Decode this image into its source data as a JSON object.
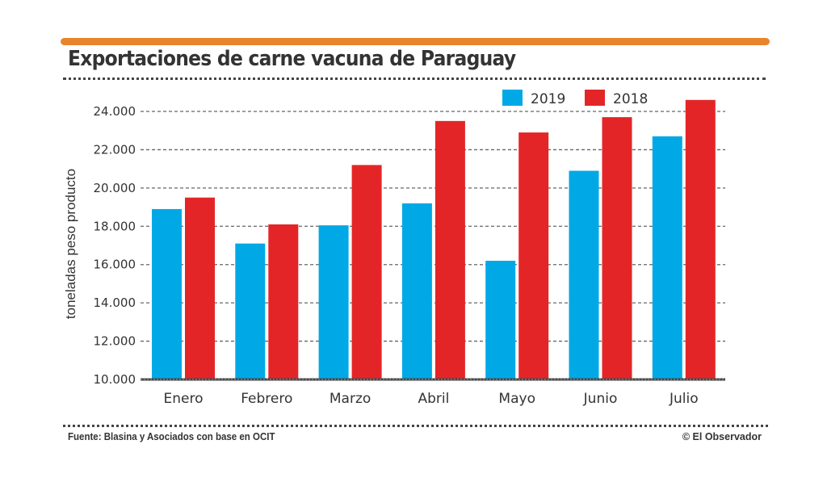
{
  "header": {
    "title": "Exportaciones de carne vacuna de Paraguay"
  },
  "footer": {
    "source": "Fuente: Blasina y Asociados con base en OCIT",
    "credit": "© El Observador"
  },
  "colors": {
    "accent": "#e8852c",
    "series_2019": "#00a9e6",
    "series_2018": "#e42527"
  },
  "chart_data": {
    "type": "bar",
    "title": "Exportaciones de carne vacuna de Paraguay",
    "xlabel": "",
    "ylabel": "toneladas peso producto",
    "categories": [
      "Enero",
      "Febrero",
      "Marzo",
      "Abril",
      "Mayo",
      "Junio",
      "Julio"
    ],
    "series": [
      {
        "name": "2019",
        "color": "#00a9e6",
        "values": [
          18900,
          17100,
          18050,
          19200,
          16200,
          20900,
          22700
        ]
      },
      {
        "name": "2018",
        "color": "#e42527",
        "values": [
          19500,
          18100,
          21200,
          23500,
          22900,
          23700,
          24600
        ]
      }
    ],
    "ylim": [
      10000,
      24000
    ],
    "yticks": [
      10000,
      12000,
      14000,
      16000,
      18000,
      20000,
      22000,
      24000
    ],
    "ytick_labels": [
      "10.000",
      "12.000",
      "14.000",
      "16.000",
      "18.000",
      "20.000",
      "22.000",
      "24.000"
    ],
    "grid": true,
    "legend": {
      "placement": "top-right",
      "entries": [
        "2019",
        "2018"
      ]
    }
  }
}
